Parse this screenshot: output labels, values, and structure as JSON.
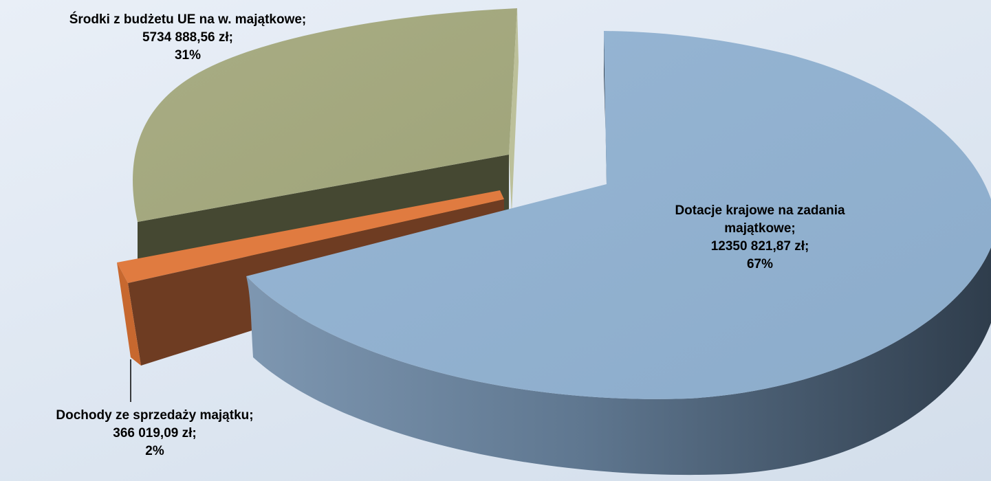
{
  "chart_data": {
    "type": "pie",
    "style": "3d-exploded",
    "title": "",
    "currency": "zł",
    "slices": [
      {
        "name": "Dotacje krajowe na zadania majątkowe;",
        "name_line1": "Dotacje krajowe na zadania",
        "name_line2": "majątkowe;",
        "value": 12350821.87,
        "value_text": "12350 821,87 zł;",
        "percent": 67,
        "percent_text": "67%",
        "color": "#93b3d2"
      },
      {
        "name": "Środki z budżetu UE na w. majątkowe;",
        "value": 5734888.56,
        "value_text": "5734 888,56 zł;",
        "percent": 31,
        "percent_text": "31%",
        "color": "#a5a97f"
      },
      {
        "name": "Dochody ze sprzedaży majątku;",
        "value": 366019.09,
        "value_text": "366 019,09 zł;",
        "percent": 2,
        "percent_text": "2%",
        "color": "#e07b40"
      }
    ],
    "legend": "none",
    "data_labels": "on-slices"
  }
}
